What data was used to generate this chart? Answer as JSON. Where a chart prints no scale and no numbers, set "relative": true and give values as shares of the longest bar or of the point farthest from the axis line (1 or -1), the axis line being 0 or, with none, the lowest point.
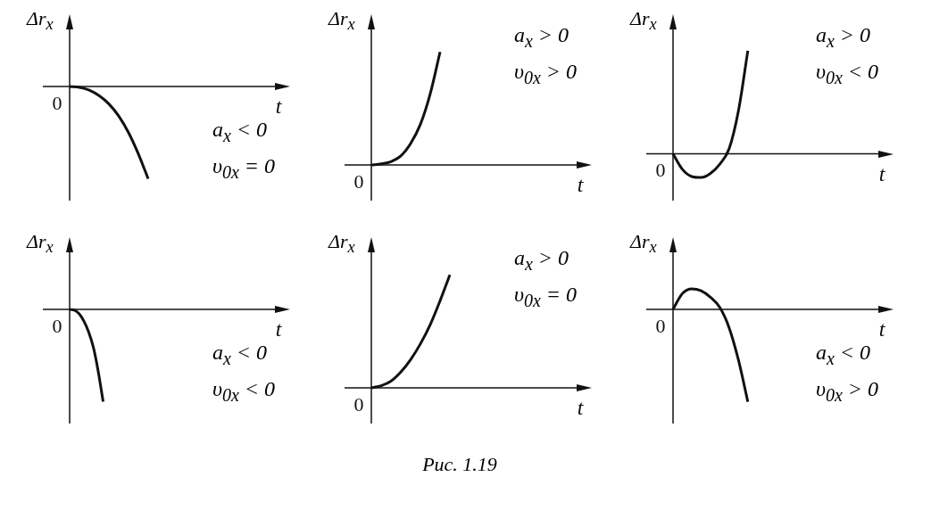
{
  "chart_data": [
    {
      "type": "line",
      "relative": true,
      "xlabel": "t",
      "ylabel": "Δr$_{x}$",
      "color": "#111111",
      "annotations": [
        "0",
        "a$_{x}$ < 0",
        "υ$_{0x}$ = 0"
      ],
      "categories": [
        null,
        null,
        null,
        null,
        null,
        null,
        null,
        null,
        null,
        null,
        null,
        null,
        null,
        null,
        null,
        null,
        null,
        null,
        null,
        null,
        null
      ],
      "values": [
        0,
        -0.01,
        -0.04,
        -0.1,
        -0.19,
        -0.32,
        -0.5,
        -0.73,
        -1,
        null,
        null,
        null,
        null,
        null,
        null,
        null,
        null,
        null,
        null,
        null,
        null
      ]
    },
    {
      "type": "line",
      "relative": true,
      "xlabel": "t",
      "ylabel": "Δr$_{x}$",
      "color": "#111111",
      "annotations": [
        "0",
        "a$_{x}$ > 0",
        "υ$_{0x}$ > 0"
      ],
      "categories": [
        null,
        null,
        null,
        null,
        null,
        null,
        null,
        null,
        null,
        null,
        null,
        null,
        null,
        null,
        null,
        null,
        null,
        null,
        null,
        null,
        null
      ],
      "values": [
        0,
        0.01,
        0.03,
        0.08,
        0.19,
        0.36,
        0.63,
        1,
        null,
        null,
        null,
        null,
        null,
        null,
        null,
        null,
        null,
        null,
        null,
        null,
        null
      ]
    },
    {
      "type": "line",
      "relative": true,
      "xlabel": "t",
      "ylabel": "Δr$_{x}$",
      "color": "#111111",
      "annotations": [
        "0",
        "a$_{x}$ > 0",
        "υ$_{0x}$ < 0"
      ],
      "categories": [
        null,
        null,
        null,
        null,
        null,
        null,
        null,
        null,
        null,
        null,
        null,
        null,
        null,
        null,
        null,
        null,
        null,
        null,
        null,
        null,
        null,
        null
      ],
      "values": [
        0,
        -0.15,
        -0.22,
        -0.23,
        -0.19,
        -0.1,
        0.05,
        0.42,
        1,
        null,
        null,
        null,
        null,
        null,
        null,
        null,
        null,
        null,
        null,
        null,
        null,
        null
      ]
    },
    {
      "type": "line",
      "relative": true,
      "xlabel": "t",
      "ylabel": "Δr$_{x}$",
      "color": "#111111",
      "annotations": [
        "0",
        "a$_{x}$ < 0",
        "υ$_{0x}$ < 0"
      ],
      "categories": [
        null,
        null,
        null,
        null,
        null,
        null,
        null,
        null,
        null,
        null,
        null,
        null,
        null,
        null,
        null,
        null,
        null,
        null,
        null,
        null,
        null,
        null,
        null,
        null,
        null,
        null,
        null,
        null,
        null,
        null,
        null,
        null,
        null,
        null,
        null,
        null,
        null,
        null,
        null,
        null,
        null,
        null
      ],
      "values": [
        0,
        -0.01,
        -0.05,
        -0.13,
        -0.25,
        -0.42,
        -0.68,
        -1,
        null,
        null,
        null,
        null,
        null,
        null,
        null,
        null,
        null,
        null,
        null,
        null,
        null,
        null,
        null,
        null,
        null,
        null,
        null,
        null,
        null,
        null,
        null,
        null,
        null,
        null,
        null,
        null,
        null,
        null,
        null,
        null,
        null,
        null
      ]
    },
    {
      "type": "line",
      "relative": true,
      "xlabel": "t",
      "ylabel": "Δr$_{x}$",
      "color": "#111111",
      "annotations": [
        "0",
        "a$_{x}$ > 0",
        "υ$_{0x}$ = 0"
      ],
      "categories": [
        null,
        null,
        null,
        null,
        null,
        null,
        null,
        null,
        null,
        null,
        null,
        null,
        null,
        null,
        null,
        null,
        null,
        null,
        null,
        null,
        null
      ],
      "values": [
        0,
        0.02,
        0.06,
        0.14,
        0.25,
        0.39,
        0.56,
        0.77,
        1,
        null,
        null,
        null,
        null,
        null,
        null,
        null,
        null,
        null,
        null,
        null,
        null
      ]
    },
    {
      "type": "line",
      "relative": true,
      "xlabel": "t",
      "ylabel": "Δr$_{x}$",
      "color": "#111111",
      "annotations": [
        "0",
        "a$_{x}$ < 0",
        "υ$_{0x}$ > 0"
      ],
      "categories": [
        null,
        null,
        null,
        null,
        null,
        null,
        null,
        null,
        null,
        null,
        null,
        null,
        null,
        null,
        null,
        null,
        null,
        null,
        null,
        null,
        null,
        null
      ],
      "values": [
        0,
        0.17,
        0.22,
        0.2,
        0.13,
        0.02,
        -0.2,
        -0.55,
        -1,
        null,
        null,
        null,
        null,
        null,
        null,
        null,
        null,
        null,
        null,
        null,
        null,
        null
      ]
    },
    {
      "type": "other",
      "annotations": [
        "Рис. 1.19"
      ]
    }
  ]
}
